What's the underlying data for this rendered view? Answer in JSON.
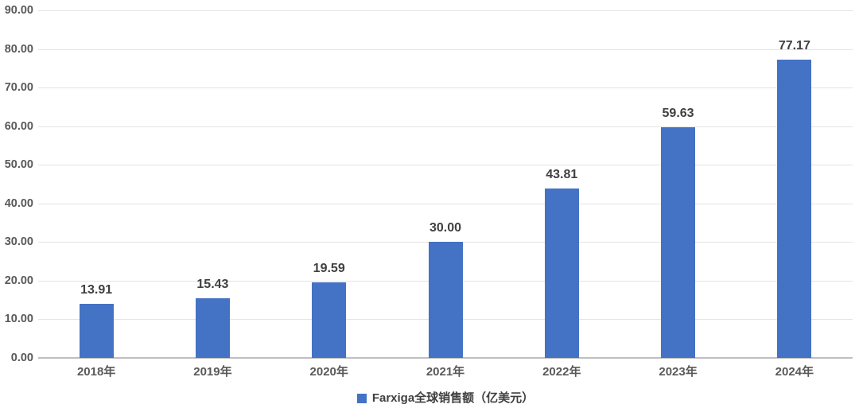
{
  "chart_data": {
    "type": "bar",
    "title": "",
    "categories": [
      "2018年",
      "2019年",
      "2020年",
      "2021年",
      "2022年",
      "2023年",
      "2024年"
    ],
    "series": [
      {
        "name": "Farxiga全球销售额（亿美元）",
        "values": [
          13.91,
          15.43,
          19.59,
          30.0,
          43.81,
          59.63,
          77.17
        ],
        "color": "#4472C4"
      }
    ],
    "data_labels": [
      "13.91",
      "15.43",
      "19.59",
      "30.00",
      "43.81",
      "59.63",
      "77.17"
    ],
    "ylabel": "",
    "xlabel": "",
    "ylim": [
      0,
      90
    ],
    "ytick_step": 10,
    "ytick_decimals": 2,
    "grid": true,
    "legend_position": "bottom"
  },
  "legend": {
    "label": "Farxiga全球销售额（亿美元）",
    "swatch_color": "#4472C4"
  },
  "colors": {
    "bar": "#4472C4",
    "gridline": "#e4e4e4",
    "axis_line": "#bfbfbf",
    "tick_label": "#595959",
    "data_label": "#404040"
  }
}
